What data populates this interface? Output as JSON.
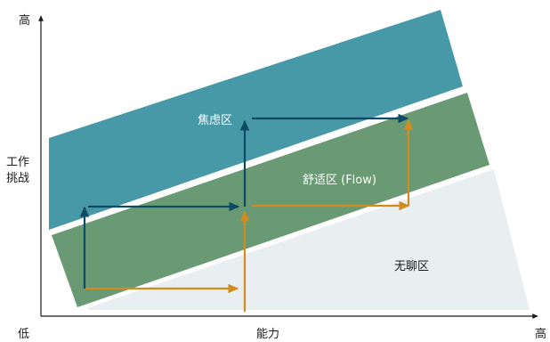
{
  "axes": {
    "y_high": "高",
    "y_title_line1": "工作",
    "y_title_line2": "挑战",
    "origin_low": "低",
    "x_title": "能力",
    "x_high": "高"
  },
  "zones": {
    "anxiety": "焦虑区",
    "flow": "舒适区 (Flow)",
    "boredom": "无聊区"
  },
  "colors": {
    "anxiety": "#4799a8",
    "flow": "#6a9a74",
    "boredom": "#e9eef0",
    "challenge_arrow": "#0d4a63",
    "skill_arrow": "#d18b1e",
    "axis": "#1a1a1a",
    "text_light": "#ffffff",
    "text_dark": "#1a1a1a"
  }
}
